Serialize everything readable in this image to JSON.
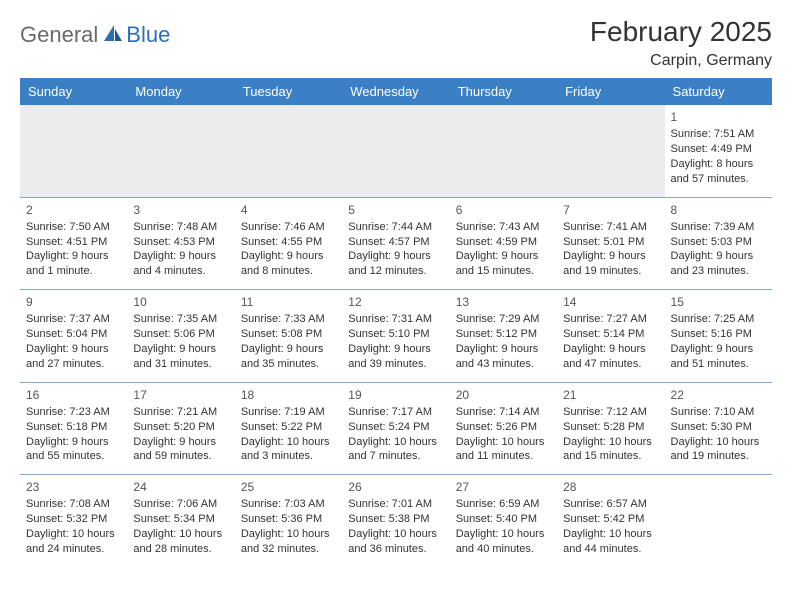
{
  "logo": {
    "general": "General",
    "blue": "Blue"
  },
  "title": "February 2025",
  "location": "Carpin, Germany",
  "colors": {
    "header_bg": "#3b7fc4",
    "header_text": "#ffffff",
    "border": "#8aa9c9",
    "empty_bg": "#ececec",
    "text": "#333333",
    "logo_gray": "#6b6b6b",
    "logo_blue": "#2a6fb5"
  },
  "weekdays": [
    "Sunday",
    "Monday",
    "Tuesday",
    "Wednesday",
    "Thursday",
    "Friday",
    "Saturday"
  ],
  "weeks": [
    [
      null,
      null,
      null,
      null,
      null,
      null,
      {
        "n": "1",
        "sr": "Sunrise: 7:51 AM",
        "ss": "Sunset: 4:49 PM",
        "dl": "Daylight: 8 hours and 57 minutes."
      }
    ],
    [
      {
        "n": "2",
        "sr": "Sunrise: 7:50 AM",
        "ss": "Sunset: 4:51 PM",
        "dl": "Daylight: 9 hours and 1 minute."
      },
      {
        "n": "3",
        "sr": "Sunrise: 7:48 AM",
        "ss": "Sunset: 4:53 PM",
        "dl": "Daylight: 9 hours and 4 minutes."
      },
      {
        "n": "4",
        "sr": "Sunrise: 7:46 AM",
        "ss": "Sunset: 4:55 PM",
        "dl": "Daylight: 9 hours and 8 minutes."
      },
      {
        "n": "5",
        "sr": "Sunrise: 7:44 AM",
        "ss": "Sunset: 4:57 PM",
        "dl": "Daylight: 9 hours and 12 minutes."
      },
      {
        "n": "6",
        "sr": "Sunrise: 7:43 AM",
        "ss": "Sunset: 4:59 PM",
        "dl": "Daylight: 9 hours and 15 minutes."
      },
      {
        "n": "7",
        "sr": "Sunrise: 7:41 AM",
        "ss": "Sunset: 5:01 PM",
        "dl": "Daylight: 9 hours and 19 minutes."
      },
      {
        "n": "8",
        "sr": "Sunrise: 7:39 AM",
        "ss": "Sunset: 5:03 PM",
        "dl": "Daylight: 9 hours and 23 minutes."
      }
    ],
    [
      {
        "n": "9",
        "sr": "Sunrise: 7:37 AM",
        "ss": "Sunset: 5:04 PM",
        "dl": "Daylight: 9 hours and 27 minutes."
      },
      {
        "n": "10",
        "sr": "Sunrise: 7:35 AM",
        "ss": "Sunset: 5:06 PM",
        "dl": "Daylight: 9 hours and 31 minutes."
      },
      {
        "n": "11",
        "sr": "Sunrise: 7:33 AM",
        "ss": "Sunset: 5:08 PM",
        "dl": "Daylight: 9 hours and 35 minutes."
      },
      {
        "n": "12",
        "sr": "Sunrise: 7:31 AM",
        "ss": "Sunset: 5:10 PM",
        "dl": "Daylight: 9 hours and 39 minutes."
      },
      {
        "n": "13",
        "sr": "Sunrise: 7:29 AM",
        "ss": "Sunset: 5:12 PM",
        "dl": "Daylight: 9 hours and 43 minutes."
      },
      {
        "n": "14",
        "sr": "Sunrise: 7:27 AM",
        "ss": "Sunset: 5:14 PM",
        "dl": "Daylight: 9 hours and 47 minutes."
      },
      {
        "n": "15",
        "sr": "Sunrise: 7:25 AM",
        "ss": "Sunset: 5:16 PM",
        "dl": "Daylight: 9 hours and 51 minutes."
      }
    ],
    [
      {
        "n": "16",
        "sr": "Sunrise: 7:23 AM",
        "ss": "Sunset: 5:18 PM",
        "dl": "Daylight: 9 hours and 55 minutes."
      },
      {
        "n": "17",
        "sr": "Sunrise: 7:21 AM",
        "ss": "Sunset: 5:20 PM",
        "dl": "Daylight: 9 hours and 59 minutes."
      },
      {
        "n": "18",
        "sr": "Sunrise: 7:19 AM",
        "ss": "Sunset: 5:22 PM",
        "dl": "Daylight: 10 hours and 3 minutes."
      },
      {
        "n": "19",
        "sr": "Sunrise: 7:17 AM",
        "ss": "Sunset: 5:24 PM",
        "dl": "Daylight: 10 hours and 7 minutes."
      },
      {
        "n": "20",
        "sr": "Sunrise: 7:14 AM",
        "ss": "Sunset: 5:26 PM",
        "dl": "Daylight: 10 hours and 11 minutes."
      },
      {
        "n": "21",
        "sr": "Sunrise: 7:12 AM",
        "ss": "Sunset: 5:28 PM",
        "dl": "Daylight: 10 hours and 15 minutes."
      },
      {
        "n": "22",
        "sr": "Sunrise: 7:10 AM",
        "ss": "Sunset: 5:30 PM",
        "dl": "Daylight: 10 hours and 19 minutes."
      }
    ],
    [
      {
        "n": "23",
        "sr": "Sunrise: 7:08 AM",
        "ss": "Sunset: 5:32 PM",
        "dl": "Daylight: 10 hours and 24 minutes."
      },
      {
        "n": "24",
        "sr": "Sunrise: 7:06 AM",
        "ss": "Sunset: 5:34 PM",
        "dl": "Daylight: 10 hours and 28 minutes."
      },
      {
        "n": "25",
        "sr": "Sunrise: 7:03 AM",
        "ss": "Sunset: 5:36 PM",
        "dl": "Daylight: 10 hours and 32 minutes."
      },
      {
        "n": "26",
        "sr": "Sunrise: 7:01 AM",
        "ss": "Sunset: 5:38 PM",
        "dl": "Daylight: 10 hours and 36 minutes."
      },
      {
        "n": "27",
        "sr": "Sunrise: 6:59 AM",
        "ss": "Sunset: 5:40 PM",
        "dl": "Daylight: 10 hours and 40 minutes."
      },
      {
        "n": "28",
        "sr": "Sunrise: 6:57 AM",
        "ss": "Sunset: 5:42 PM",
        "dl": "Daylight: 10 hours and 44 minutes."
      },
      null
    ]
  ]
}
